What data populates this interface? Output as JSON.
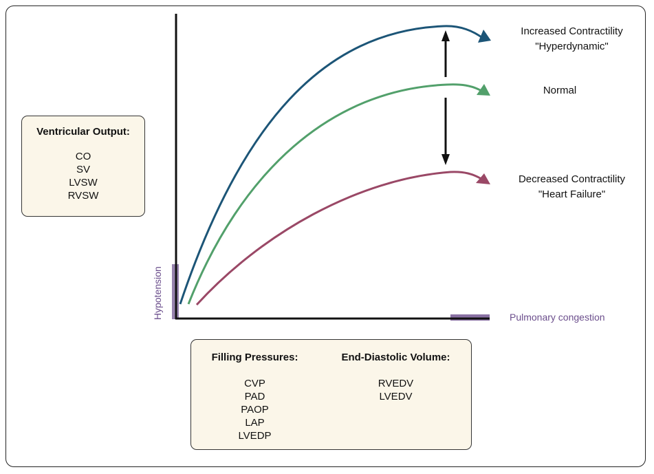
{
  "colors": {
    "increased": "#1c5577",
    "normal": "#52a06b",
    "decreased": "#9a4866",
    "marker": "#6b4e8c",
    "box_fill": "#fbf6e9"
  },
  "curves": {
    "increased": {
      "label_line1": "Increased Contractility",
      "label_line2": "\"Hyperdynamic\""
    },
    "normal": {
      "label_line1": "Normal"
    },
    "decreased": {
      "label_line1": "Decreased Contractility",
      "label_line2": "\"Heart Failure\""
    }
  },
  "markers": {
    "y_axis_label": "Hypotension",
    "x_axis_label": "Pulmonary congestion"
  },
  "ventricular_output": {
    "title": "Ventricular Output:",
    "items": [
      "CO",
      "SV",
      "LVSW",
      "RVSW"
    ]
  },
  "filling_pressures": {
    "title": "Filling Pressures:",
    "items": [
      "CVP",
      "PAD",
      "PAOP",
      "LAP",
      "LVEDP"
    ]
  },
  "end_diastolic_volume": {
    "title": "End-Diastolic Volume:",
    "items": [
      "RVEDV",
      "LVEDV"
    ]
  }
}
